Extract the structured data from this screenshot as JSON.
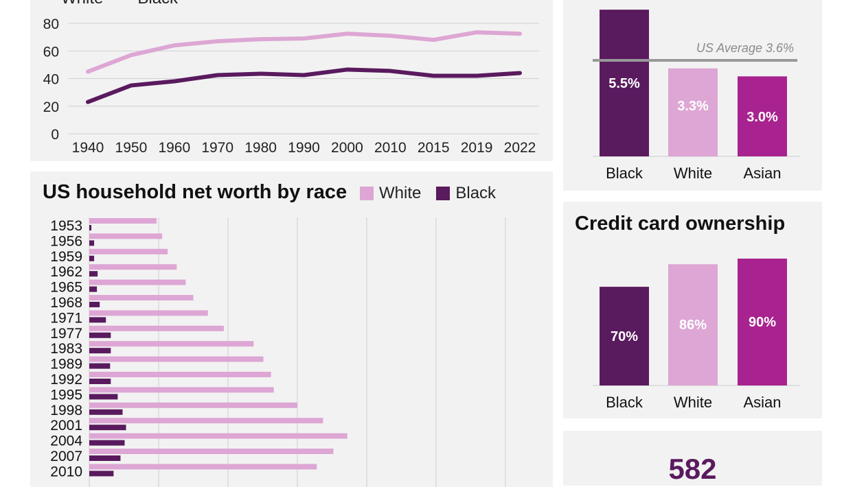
{
  "colors": {
    "white": "#dda6d4",
    "black": "#5a1a5e",
    "asian": "#a8238f",
    "background": "#f2f2f2",
    "average_line": "#999999"
  },
  "chart_data": [
    {
      "type": "line",
      "legend": [
        "White",
        "Black"
      ],
      "categories": [
        "1940",
        "1950",
        "1960",
        "1970",
        "1980",
        "1990",
        "2000",
        "2010",
        "2015",
        "2019",
        "2022"
      ],
      "series": [
        {
          "name": "White",
          "values": [
            45,
            57,
            64,
            67,
            68.5,
            69,
            72.5,
            71,
            68,
            73.5,
            72.5
          ]
        },
        {
          "name": "Black",
          "values": [
            23,
            35,
            38,
            42.5,
            43.5,
            42.5,
            46.5,
            45.5,
            42,
            42,
            44
          ]
        }
      ],
      "yticks": [
        0,
        20,
        40,
        60,
        80
      ],
      "ylim": [
        0,
        80
      ],
      "grid": true
    },
    {
      "type": "bar",
      "orientation": "horizontal",
      "title": "US household net worth by race",
      "legend": [
        "White",
        "Black"
      ],
      "legend_placement": "top-right",
      "categories": [
        "1953",
        "1956",
        "1959",
        "1962",
        "1965",
        "1968",
        "1971",
        "1977",
        "1983",
        "1989",
        "1992",
        "1995",
        "1998",
        "2001",
        "2004",
        "2007",
        "2010"
      ],
      "series": [
        {
          "name": "White",
          "values": [
            0.97,
            1.05,
            1.13,
            1.26,
            1.39,
            1.5,
            1.71,
            1.94,
            2.37,
            2.51,
            2.62,
            2.66,
            3.0,
            3.37,
            3.72,
            3.52,
            3.28
          ]
        },
        {
          "name": "Black",
          "values": [
            0.03,
            0.07,
            0.07,
            0.12,
            0.11,
            0.15,
            0.24,
            0.31,
            0.31,
            0.3,
            0.31,
            0.41,
            0.48,
            0.53,
            0.51,
            0.45,
            0.35
          ]
        }
      ],
      "xlim": [
        0,
        6
      ],
      "grid": true
    },
    {
      "type": "bar",
      "categories": [
        "Black",
        "White",
        "Asian"
      ],
      "values": [
        5.5,
        3.3,
        3.0
      ],
      "labels": [
        "5.5%",
        "3.3%",
        "3.0%"
      ],
      "reference_line": {
        "value": 3.6,
        "label": "US Average 3.6%"
      }
    },
    {
      "type": "bar",
      "title": "Credit card ownership",
      "categories": [
        "Black",
        "White",
        "Asian"
      ],
      "values": [
        70,
        86,
        90
      ],
      "labels": [
        "70%",
        "86%",
        "90%"
      ]
    }
  ],
  "score_panel": {
    "value": "582"
  }
}
